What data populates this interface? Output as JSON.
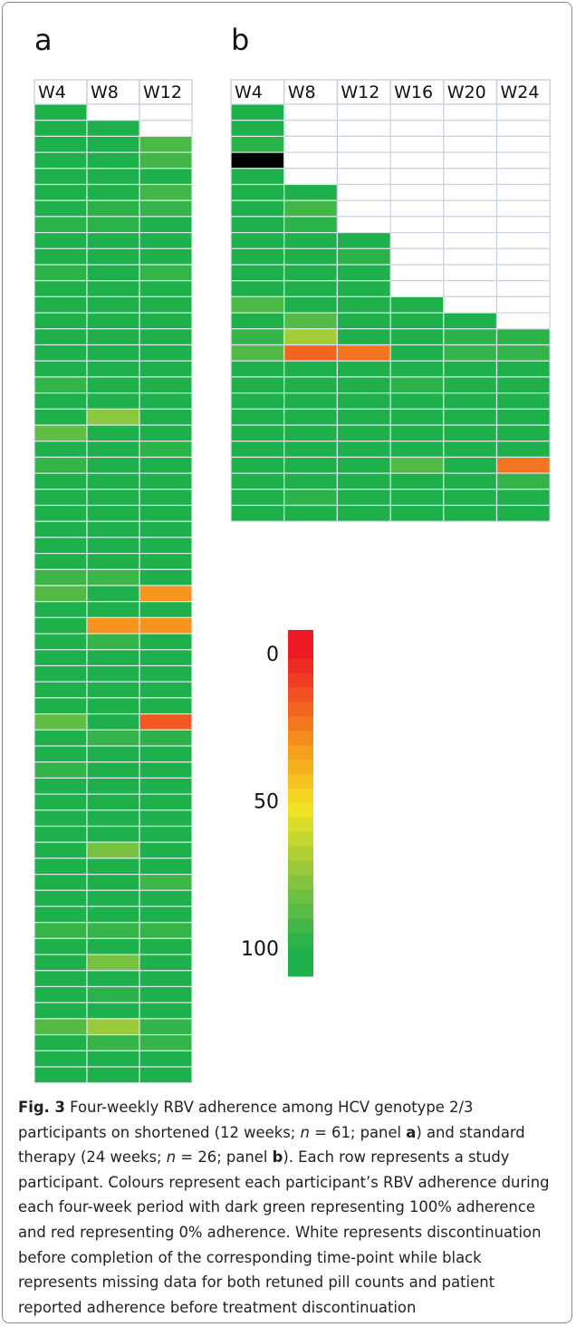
{
  "chart_data": {
    "type": "heatmap",
    "panels": [
      {
        "label": "a",
        "columns": [
          "W4",
          "W8",
          "W12"
        ],
        "values": [
          [
            100,
            null,
            null
          ],
          [
            100,
            100,
            null
          ],
          [
            100,
            100,
            90
          ],
          [
            100,
            100,
            92
          ],
          [
            100,
            100,
            100
          ],
          [
            100,
            100,
            92
          ],
          [
            100,
            97,
            95
          ],
          [
            97,
            97,
            100
          ],
          [
            100,
            100,
            100
          ],
          [
            100,
            100,
            100
          ],
          [
            97,
            100,
            95
          ],
          [
            100,
            100,
            100
          ],
          [
            100,
            100,
            100
          ],
          [
            100,
            100,
            100
          ],
          [
            100,
            100,
            100
          ],
          [
            100,
            100,
            100
          ],
          [
            100,
            100,
            100
          ],
          [
            95,
            100,
            100
          ],
          [
            100,
            100,
            100
          ],
          [
            100,
            75,
            100
          ],
          [
            85,
            100,
            100
          ],
          [
            100,
            100,
            97
          ],
          [
            95,
            100,
            100
          ],
          [
            100,
            100,
            100
          ],
          [
            100,
            100,
            100
          ],
          [
            100,
            100,
            100
          ],
          [
            100,
            100,
            100
          ],
          [
            100,
            100,
            100
          ],
          [
            100,
            100,
            100
          ],
          [
            93,
            93,
            100
          ],
          [
            88,
            100,
            30
          ],
          [
            100,
            100,
            100
          ],
          [
            100,
            30,
            30
          ],
          [
            100,
            95,
            100
          ],
          [
            100,
            100,
            100
          ],
          [
            100,
            100,
            100
          ],
          [
            100,
            100,
            100
          ],
          [
            100,
            100,
            100
          ],
          [
            85,
            100,
            15
          ],
          [
            100,
            95,
            97
          ],
          [
            100,
            100,
            100
          ],
          [
            95,
            100,
            100
          ],
          [
            100,
            100,
            100
          ],
          [
            100,
            100,
            100
          ],
          [
            100,
            100,
            100
          ],
          [
            100,
            100,
            100
          ],
          [
            100,
            80,
            100
          ],
          [
            100,
            100,
            100
          ],
          [
            100,
            100,
            93
          ],
          [
            100,
            100,
            100
          ],
          [
            100,
            100,
            100
          ],
          [
            95,
            95,
            95
          ],
          [
            100,
            100,
            100
          ],
          [
            100,
            80,
            100
          ],
          [
            100,
            100,
            100
          ],
          [
            100,
            97,
            100
          ],
          [
            100,
            100,
            100
          ],
          [
            88,
            72,
            95
          ],
          [
            100,
            95,
            95
          ],
          [
            100,
            100,
            100
          ],
          [
            100,
            100,
            100
          ]
        ]
      },
      {
        "label": "b",
        "columns": [
          "W4",
          "W8",
          "W12",
          "W16",
          "W20",
          "W24"
        ],
        "values": [
          [
            100,
            null,
            null,
            null,
            null,
            null
          ],
          [
            100,
            null,
            null,
            null,
            null,
            null
          ],
          [
            97,
            null,
            null,
            null,
            null,
            null
          ],
          [
            null,
            null,
            null,
            null,
            null,
            null
          ],
          [
            100,
            null,
            null,
            null,
            null,
            null
          ],
          [
            100,
            100,
            null,
            null,
            null,
            null
          ],
          [
            100,
            92,
            null,
            null,
            null,
            null
          ],
          [
            100,
            97,
            null,
            null,
            null,
            null
          ],
          [
            100,
            100,
            100,
            null,
            null,
            null
          ],
          [
            100,
            100,
            97,
            null,
            null,
            null
          ],
          [
            100,
            100,
            100,
            null,
            null,
            null
          ],
          [
            100,
            100,
            100,
            null,
            null,
            null
          ],
          [
            90,
            100,
            100,
            100,
            null,
            null
          ],
          [
            100,
            88,
            100,
            100,
            100,
            null
          ],
          [
            95,
            70,
            100,
            100,
            97,
            97
          ],
          [
            88,
            18,
            22,
            100,
            95,
            95
          ],
          [
            100,
            100,
            100,
            100,
            100,
            100
          ],
          [
            100,
            100,
            100,
            97,
            100,
            100
          ],
          [
            100,
            100,
            100,
            100,
            100,
            100
          ],
          [
            100,
            100,
            100,
            100,
            100,
            100
          ],
          [
            100,
            100,
            100,
            100,
            100,
            100
          ],
          [
            100,
            100,
            100,
            100,
            100,
            100
          ],
          [
            100,
            100,
            100,
            88,
            100,
            22
          ],
          [
            100,
            100,
            100,
            100,
            100,
            95
          ],
          [
            100,
            97,
            100,
            100,
            100,
            100
          ],
          [
            100,
            100,
            100,
            100,
            100,
            100
          ]
        ],
        "missing": {
          "cells": [
            [
              3,
              0
            ]
          ],
          "color": "#000000"
        }
      }
    ],
    "colorscale": [
      {
        "value": 0,
        "color": "#ed1c24"
      },
      {
        "value": 30,
        "color": "#f7941d"
      },
      {
        "value": 52,
        "color": "#f4e423"
      },
      {
        "value": 75,
        "color": "#8dc63f"
      },
      {
        "value": 100,
        "color": "#1eb04b"
      }
    ],
    "colorbar_ticks": [
      0,
      50,
      100
    ],
    "caption": {
      "label": "Fig. 3",
      "parts": [
        " Four-weekly RBV adherence among HCV genotype 2/3 participants on shortened (12 weeks; ",
        "n",
        " = 61; panel ",
        "a",
        ") and standard therapy (24 weeks; ",
        "n",
        " = 26; panel ",
        "b",
        "). Each row represents a study participant. Colours represent each participant’s RBV adherence during each four-week period with dark green representing 100% adherence and red representing 0% adherence. White represents discontinuation before completion of the corresponding time-point while black represents missing data for both retuned pill counts and patient reported adherence before treatment discontinuation"
      ]
    }
  }
}
